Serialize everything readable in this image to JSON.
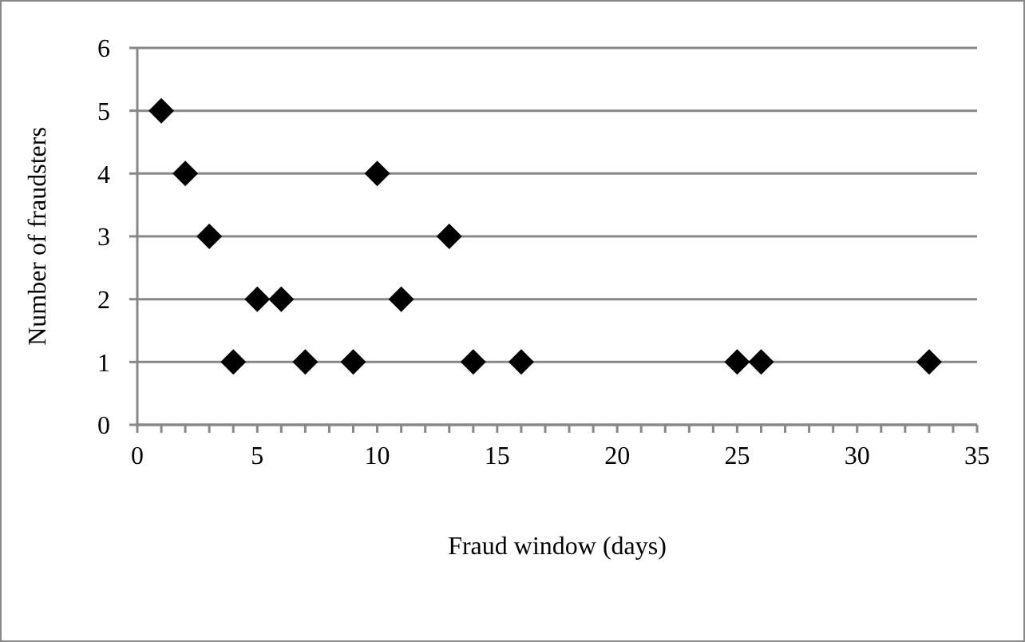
{
  "chart_data": {
    "type": "scatter",
    "xlabel": "Fraud window (days)",
    "ylabel": "Number of fraudsters",
    "x": [
      1,
      2,
      3,
      4,
      5,
      6,
      7,
      9,
      10,
      11,
      13,
      14,
      16,
      25,
      26,
      33
    ],
    "values": [
      5,
      4,
      3,
      1,
      2,
      2,
      1,
      1,
      4,
      2,
      3,
      1,
      1,
      1,
      1,
      1
    ],
    "color": "#000000",
    "marker": "diamond",
    "grid": "y",
    "legend": false,
    "xlim": [
      0,
      35
    ],
    "ylim": [
      0,
      6
    ],
    "yticks": [
      0,
      1,
      2,
      3,
      4,
      5,
      6
    ],
    "xticks": [
      0,
      {
        "value": 1,
        "label": null
      },
      {
        "value": 2,
        "label": null
      },
      {
        "value": 3,
        "label": null
      },
      {
        "value": 4,
        "label": null
      },
      5,
      {
        "value": 6,
        "label": null
      },
      {
        "value": 7,
        "label": null
      },
      {
        "value": 8,
        "label": null
      },
      {
        "value": 9,
        "label": null
      },
      10,
      {
        "value": 11,
        "label": null
      },
      {
        "value": 12,
        "label": null
      },
      {
        "value": 13,
        "label": null
      },
      {
        "value": 14,
        "label": null
      },
      15,
      {
        "value": 16,
        "label": null
      },
      {
        "value": 17,
        "label": null
      },
      {
        "value": 18,
        "label": null
      },
      {
        "value": 19,
        "label": null
      },
      20,
      {
        "value": 21,
        "label": null
      },
      {
        "value": 22,
        "label": null
      },
      {
        "value": 23,
        "label": null
      },
      {
        "value": 24,
        "label": null
      },
      25,
      {
        "value": 26,
        "label": null
      },
      {
        "value": 27,
        "label": null
      },
      {
        "value": 28,
        "label": null
      },
      {
        "value": 29,
        "label": null
      },
      30,
      {
        "value": 31,
        "label": null
      },
      {
        "value": 32,
        "label": null
      },
      {
        "value": 33,
        "label": null
      },
      {
        "value": 34,
        "label": null
      },
      35
    ]
  }
}
